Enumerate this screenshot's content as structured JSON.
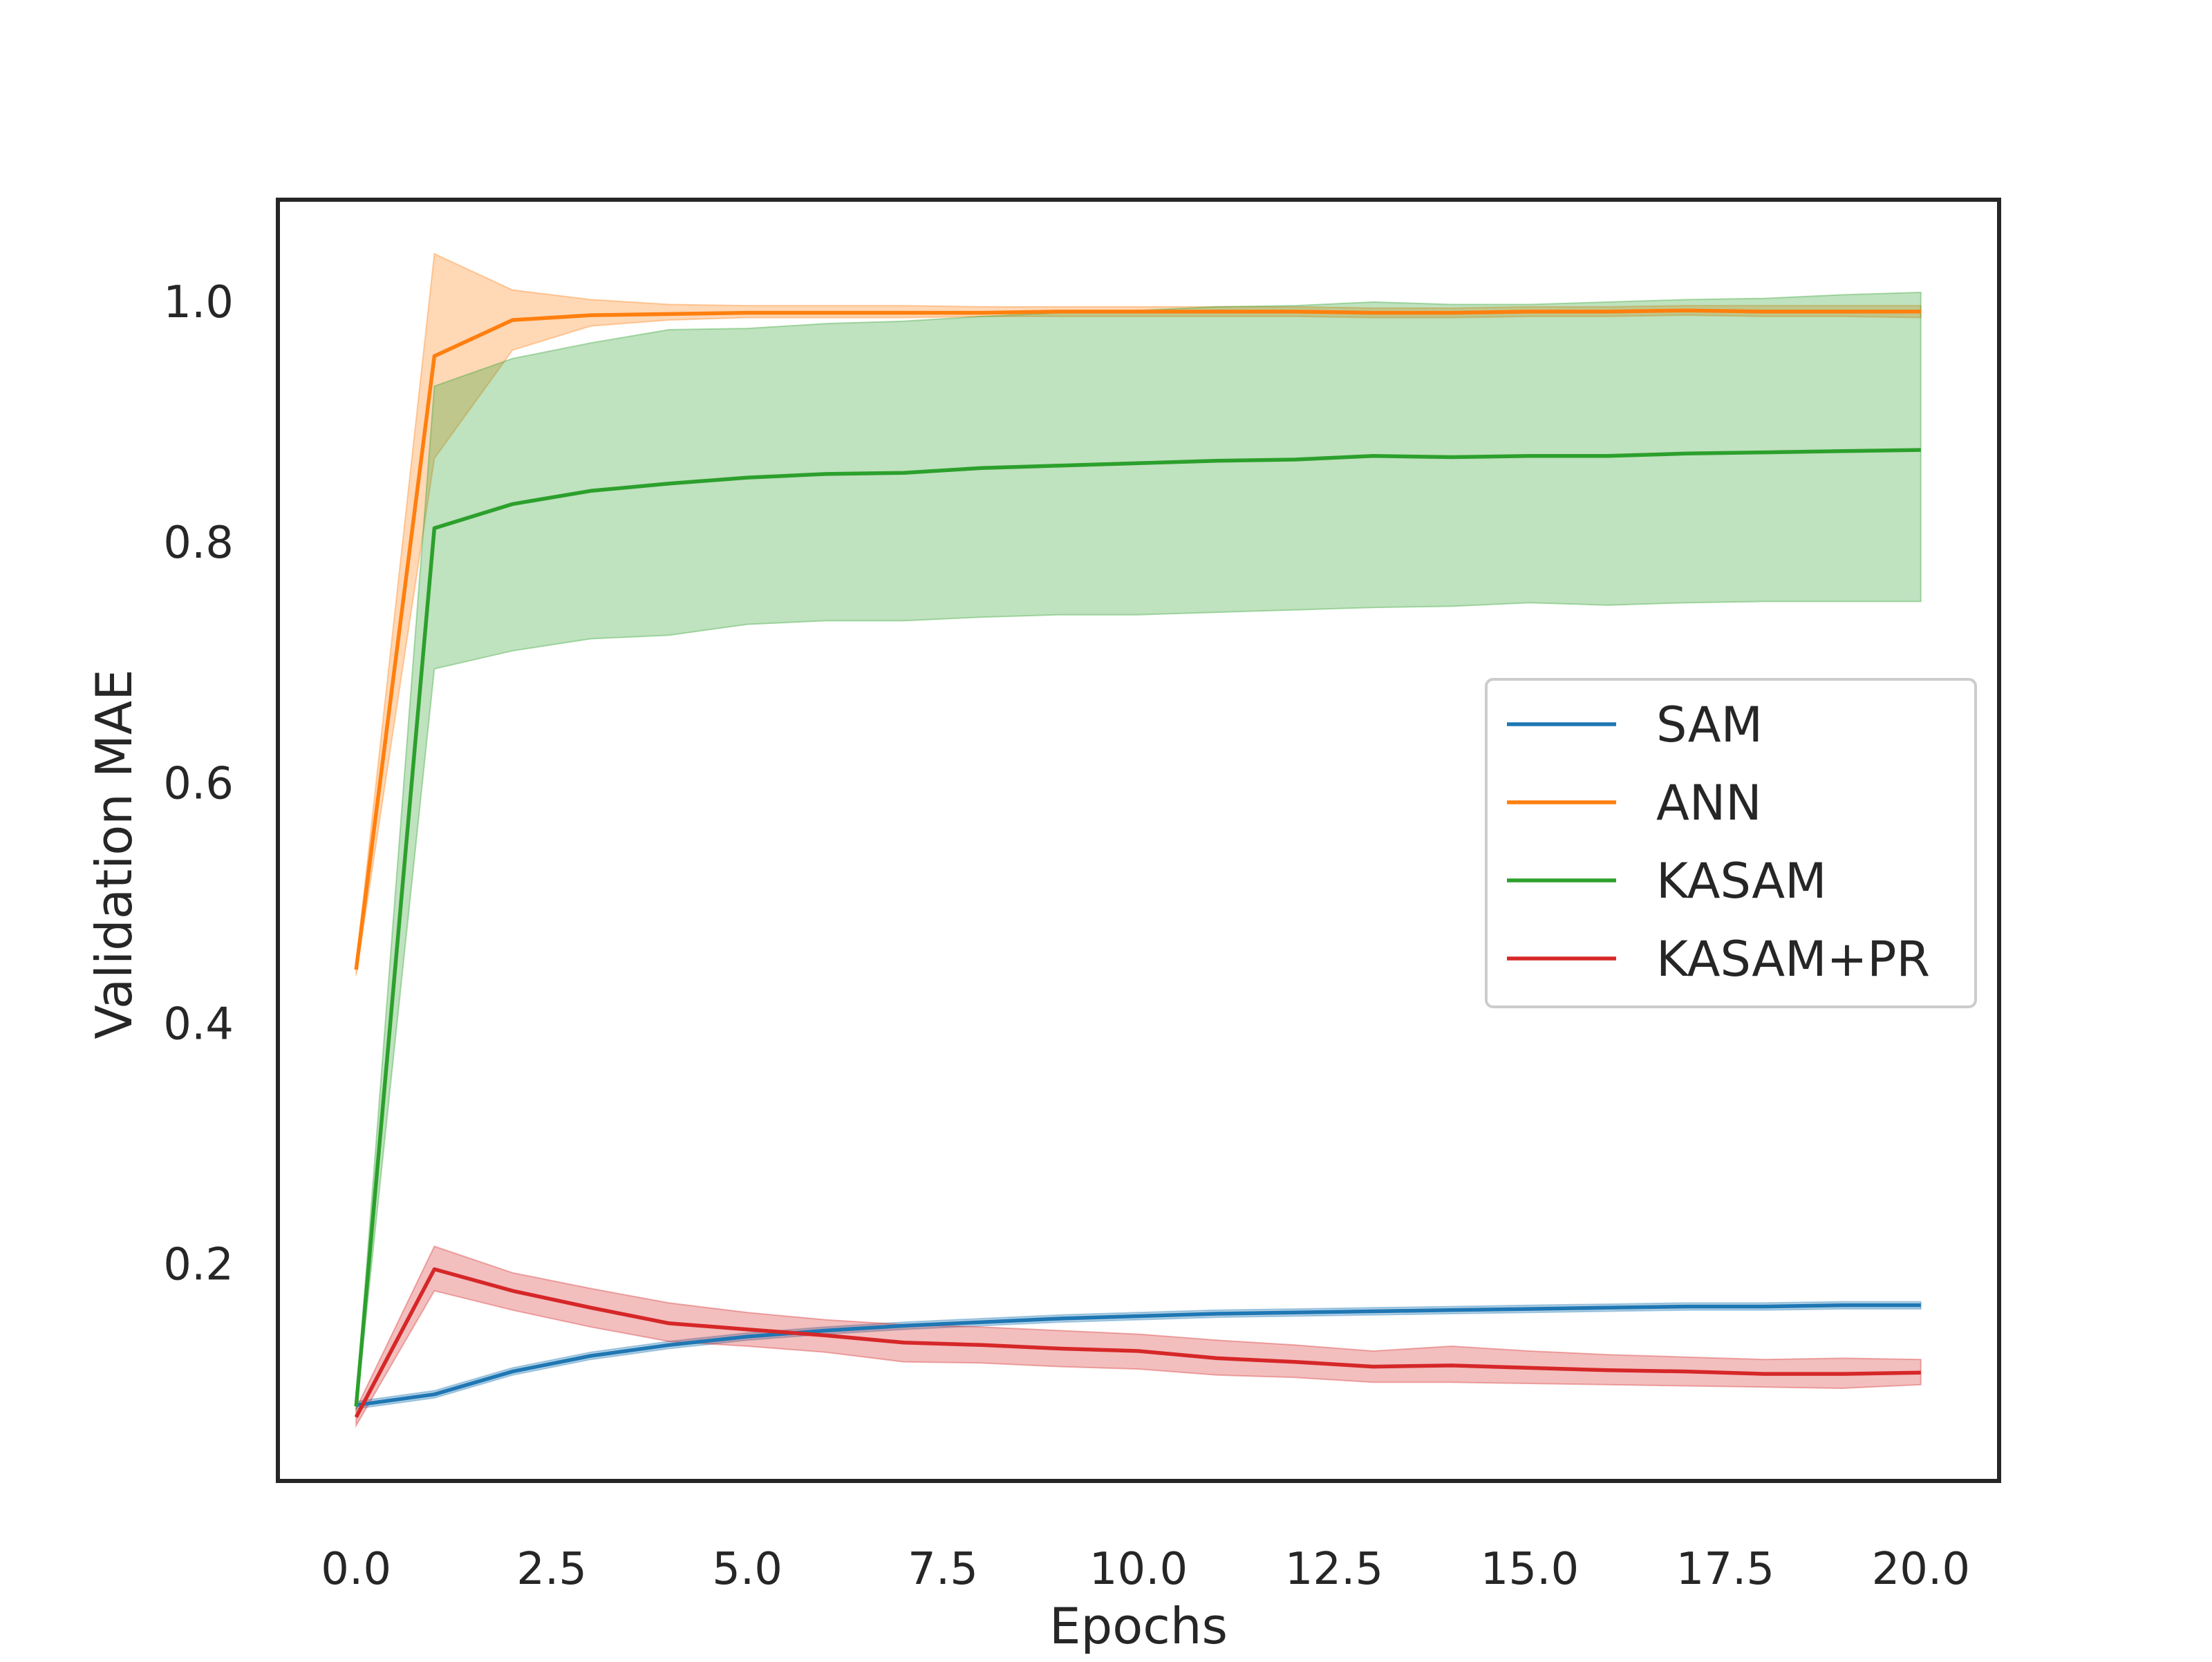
{
  "chart_data": {
    "type": "line",
    "title": "",
    "xlabel": "Epochs",
    "ylabel": "Validation MAE",
    "xlim": [
      -1.0,
      21.0
    ],
    "ylim": [
      0.02,
      1.085
    ],
    "xticks": [
      0.0,
      2.5,
      5.0,
      7.5,
      10.0,
      12.5,
      15.0,
      17.5,
      20.0
    ],
    "xtick_labels": [
      "0.0",
      "2.5",
      "5.0",
      "7.5",
      "10.0",
      "12.5",
      "15.0",
      "17.5",
      "20.0"
    ],
    "yticks": [
      0.2,
      0.4,
      0.6,
      0.8,
      1.0
    ],
    "ytick_labels": [
      "0.2",
      "0.4",
      "0.6",
      "0.8",
      "1.0"
    ],
    "grid": false,
    "legend_position": "center-right",
    "x": [
      0,
      1,
      2,
      3,
      4,
      5,
      6,
      7,
      8,
      9,
      10,
      11,
      12,
      13,
      14,
      15,
      16,
      17,
      18,
      19,
      20
    ],
    "series": [
      {
        "name": "SAM",
        "color": "#1f77b4",
        "values": [
          0.083,
          0.092,
          0.111,
          0.124,
          0.133,
          0.14,
          0.145,
          0.149,
          0.152,
          0.155,
          0.157,
          0.159,
          0.16,
          0.161,
          0.162,
          0.163,
          0.164,
          0.165,
          0.165,
          0.166,
          0.166
        ],
        "lower": [
          0.08,
          0.089,
          0.108,
          0.121,
          0.13,
          0.137,
          0.142,
          0.146,
          0.149,
          0.152,
          0.154,
          0.156,
          0.157,
          0.158,
          0.159,
          0.16,
          0.161,
          0.162,
          0.162,
          0.163,
          0.163
        ],
        "upper": [
          0.086,
          0.095,
          0.114,
          0.127,
          0.136,
          0.143,
          0.148,
          0.152,
          0.155,
          0.158,
          0.16,
          0.162,
          0.163,
          0.164,
          0.165,
          0.166,
          0.167,
          0.168,
          0.168,
          0.169,
          0.169
        ]
      },
      {
        "name": "ANN",
        "color": "#ff7f0e",
        "values": [
          0.445,
          0.955,
          0.985,
          0.989,
          0.99,
          0.991,
          0.991,
          0.991,
          0.991,
          0.992,
          0.992,
          0.992,
          0.992,
          0.991,
          0.991,
          0.992,
          0.992,
          0.993,
          0.992,
          0.992,
          0.992
        ],
        "lower": [
          0.44,
          0.87,
          0.96,
          0.98,
          0.985,
          0.987,
          0.987,
          0.987,
          0.988,
          0.988,
          0.988,
          0.988,
          0.988,
          0.987,
          0.987,
          0.988,
          0.988,
          0.989,
          0.988,
          0.988,
          0.987
        ],
        "upper": [
          0.45,
          1.04,
          1.01,
          1.002,
          0.998,
          0.997,
          0.997,
          0.997,
          0.996,
          0.996,
          0.996,
          0.996,
          0.996,
          0.995,
          0.995,
          0.996,
          0.996,
          0.997,
          0.997,
          0.997,
          0.997
        ]
      },
      {
        "name": "KASAM",
        "color": "#2ca02c",
        "values": [
          0.082,
          0.812,
          0.832,
          0.843,
          0.849,
          0.854,
          0.857,
          0.858,
          0.862,
          0.864,
          0.866,
          0.868,
          0.869,
          0.872,
          0.871,
          0.872,
          0.872,
          0.874,
          0.875,
          0.876,
          0.877
        ],
        "lower": [
          0.078,
          0.695,
          0.71,
          0.72,
          0.723,
          0.732,
          0.735,
          0.735,
          0.738,
          0.74,
          0.74,
          0.742,
          0.744,
          0.746,
          0.747,
          0.75,
          0.748,
          0.75,
          0.751,
          0.751,
          0.751
        ],
        "upper": [
          0.086,
          0.93,
          0.953,
          0.966,
          0.977,
          0.978,
          0.982,
          0.984,
          0.988,
          0.991,
          0.993,
          0.996,
          0.997,
          1.0,
          0.998,
          0.998,
          1.0,
          1.002,
          1.003,
          1.006,
          1.008
        ]
      },
      {
        "name": "KASAM+PR",
        "color": "#d62728",
        "values": [
          0.073,
          0.196,
          0.178,
          0.164,
          0.151,
          0.146,
          0.141,
          0.135,
          0.133,
          0.13,
          0.128,
          0.122,
          0.119,
          0.115,
          0.116,
          0.114,
          0.112,
          0.111,
          0.109,
          0.109,
          0.11
        ],
        "lower": [
          0.066,
          0.178,
          0.162,
          0.148,
          0.136,
          0.132,
          0.127,
          0.119,
          0.118,
          0.115,
          0.113,
          0.108,
          0.106,
          0.102,
          0.102,
          0.101,
          0.1,
          0.099,
          0.098,
          0.097,
          0.1
        ],
        "upper": [
          0.08,
          0.215,
          0.193,
          0.18,
          0.168,
          0.16,
          0.154,
          0.15,
          0.148,
          0.145,
          0.142,
          0.137,
          0.133,
          0.128,
          0.132,
          0.128,
          0.125,
          0.123,
          0.121,
          0.122,
          0.121
        ]
      }
    ]
  }
}
